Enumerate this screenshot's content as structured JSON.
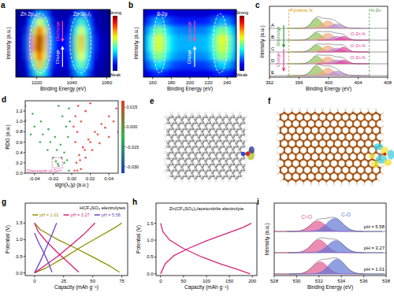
{
  "chart_data": [
    {
      "type": "heatmap",
      "panel_label": "a",
      "x_label": "Binding Energy (eV)",
      "y_label": "Intensity (a.u.)",
      "xlim": [
        1008,
        1062
      ],
      "xticks": [
        1020,
        1040,
        1060
      ],
      "tick_labels": "x",
      "x": [
        1009.5,
        1012.5,
        1015.5,
        1018.5,
        1021.5,
        1024.5,
        1027.5,
        1030.5,
        1033.5,
        1036.5,
        1039.5,
        1042.5,
        1045.5,
        1048.5,
        1051.5,
        1054.5,
        1057.5,
        1060.5
      ],
      "cells": [
        [
          0.02,
          0.03,
          0.05,
          0.15,
          0.3,
          0.25,
          0.1,
          0.05,
          0.04,
          0.04,
          0.06,
          0.15,
          0.25,
          0.18,
          0.07,
          0.04,
          0.03,
          0.02
        ],
        [
          0.03,
          0.05,
          0.12,
          0.35,
          0.6,
          0.45,
          0.18,
          0.08,
          0.06,
          0.06,
          0.1,
          0.3,
          0.45,
          0.3,
          0.12,
          0.05,
          0.03,
          0.02
        ],
        [
          0.04,
          0.07,
          0.2,
          0.55,
          0.85,
          0.6,
          0.25,
          0.12,
          0.09,
          0.09,
          0.15,
          0.42,
          0.6,
          0.4,
          0.16,
          0.07,
          0.04,
          0.03
        ],
        [
          0.05,
          0.08,
          0.25,
          0.7,
          1.0,
          0.7,
          0.3,
          0.15,
          0.12,
          0.12,
          0.2,
          0.5,
          0.7,
          0.45,
          0.2,
          0.1,
          0.06,
          0.04
        ],
        [
          0.05,
          0.08,
          0.25,
          0.72,
          0.98,
          0.68,
          0.3,
          0.15,
          0.12,
          0.12,
          0.2,
          0.5,
          0.68,
          0.45,
          0.2,
          0.1,
          0.06,
          0.04
        ],
        [
          0.04,
          0.07,
          0.22,
          0.6,
          0.88,
          0.6,
          0.25,
          0.12,
          0.1,
          0.1,
          0.16,
          0.45,
          0.62,
          0.4,
          0.17,
          0.08,
          0.05,
          0.03
        ],
        [
          0.03,
          0.06,
          0.16,
          0.45,
          0.7,
          0.5,
          0.2,
          0.1,
          0.08,
          0.08,
          0.13,
          0.36,
          0.5,
          0.33,
          0.13,
          0.06,
          0.04,
          0.03
        ],
        [
          0.02,
          0.04,
          0.1,
          0.3,
          0.48,
          0.35,
          0.14,
          0.07,
          0.05,
          0.05,
          0.09,
          0.25,
          0.35,
          0.22,
          0.09,
          0.04,
          0.03,
          0.02
        ]
      ],
      "colorbar": {
        "range": [
          0,
          1
        ],
        "labels": [
          "Strong",
          "Weak"
        ]
      },
      "highlights": [
        [
          1016,
          1028
        ],
        [
          1039,
          1051
        ]
      ],
      "peak_labels": [
        {
          "text": "Zn 2p₃/₂",
          "x": 1016
        },
        {
          "text": "Zn 2p₁/₂",
          "x": 1046
        }
      ],
      "annotations": [
        {
          "text": "Discharge",
          "x": 1032,
          "color": "#ff4f9a"
        },
        {
          "text": "Charge",
          "x": 1032,
          "color": "#ffffff"
        }
      ]
    },
    {
      "type": "heatmap",
      "panel_label": "b",
      "x_label": "Binding Energy (eV)",
      "y_label": "Intensity (a.u.)",
      "xlim": [
        150,
        250
      ],
      "xticks": [
        160,
        180,
        200,
        220,
        240
      ],
      "tick_labels": "x",
      "x": [
        152.5,
        157.5,
        162.5,
        167.5,
        172.5,
        177.5,
        182.5,
        187.5,
        192.5,
        197.5,
        202.5,
        207.5,
        212.5,
        217.5,
        222.5,
        227.5,
        232.5,
        237.5,
        242.5,
        247.5
      ],
      "cells": [
        [
          0.08,
          0.1,
          0.12,
          0.14,
          0.12,
          0.1,
          0.09,
          0.08,
          0.08,
          0.08,
          0.08,
          0.08,
          0.08,
          0.08,
          0.09,
          0.11,
          0.13,
          0.13,
          0.11,
          0.09
        ],
        [
          0.15,
          0.2,
          0.28,
          0.32,
          0.25,
          0.2,
          0.17,
          0.16,
          0.15,
          0.15,
          0.15,
          0.15,
          0.15,
          0.16,
          0.18,
          0.24,
          0.3,
          0.3,
          0.24,
          0.18
        ],
        [
          0.25,
          0.32,
          0.45,
          0.52,
          0.42,
          0.33,
          0.28,
          0.26,
          0.25,
          0.25,
          0.25,
          0.25,
          0.25,
          0.26,
          0.3,
          0.4,
          0.5,
          0.5,
          0.4,
          0.3
        ],
        [
          0.3,
          0.38,
          0.55,
          0.62,
          0.5,
          0.38,
          0.33,
          0.3,
          0.3,
          0.3,
          0.3,
          0.3,
          0.3,
          0.31,
          0.35,
          0.48,
          0.6,
          0.6,
          0.48,
          0.35
        ],
        [
          0.3,
          0.38,
          0.55,
          0.6,
          0.5,
          0.38,
          0.33,
          0.3,
          0.3,
          0.3,
          0.3,
          0.3,
          0.3,
          0.31,
          0.35,
          0.48,
          0.58,
          0.58,
          0.46,
          0.35
        ],
        [
          0.26,
          0.33,
          0.47,
          0.53,
          0.43,
          0.34,
          0.29,
          0.27,
          0.26,
          0.26,
          0.26,
          0.26,
          0.26,
          0.27,
          0.31,
          0.42,
          0.52,
          0.52,
          0.41,
          0.31
        ],
        [
          0.18,
          0.23,
          0.32,
          0.36,
          0.3,
          0.24,
          0.2,
          0.19,
          0.18,
          0.18,
          0.18,
          0.18,
          0.18,
          0.19,
          0.21,
          0.28,
          0.34,
          0.34,
          0.28,
          0.22
        ],
        [
          0.1,
          0.12,
          0.16,
          0.18,
          0.15,
          0.12,
          0.11,
          0.1,
          0.1,
          0.1,
          0.1,
          0.1,
          0.1,
          0.1,
          0.11,
          0.14,
          0.17,
          0.17,
          0.14,
          0.11
        ]
      ],
      "colorbar": {
        "range": [
          0,
          1
        ],
        "labels": [
          "Strong",
          "Weak"
        ]
      },
      "highlights": [
        [
          161,
          174
        ],
        [
          225,
          240
        ]
      ],
      "peak_labels": [
        {
          "text": "S 2p",
          "x": 170
        }
      ],
      "annotations": [
        {
          "text": "Discharge",
          "x": 200,
          "color": "#ff4f9a"
        },
        {
          "text": "Charge",
          "x": 200,
          "color": "#ffffff"
        }
      ]
    },
    {
      "type": "stacked_spectra",
      "panel_label": "c",
      "x_label": "Binding Energy (eV)",
      "y_label": "Intensity (a.u.)",
      "xlim": [
        392,
        408
      ],
      "xticks": [
        392,
        396,
        400,
        404,
        408
      ],
      "tick_labels": "x",
      "components": [
        {
          "color": "#8dbf52"
        },
        {
          "color": "#f3a77b"
        },
        {
          "color": "#b18ad6"
        },
        {
          "color": "#e0409a"
        }
      ],
      "spectra": [
        {
          "name": "A",
          "centers": [
            398.4,
            399.9,
            401.1,
            null
          ],
          "fwhm": [
            1.6,
            1.8,
            1.8,
            null
          ],
          "heights": [
            0.8,
            0.6,
            0.35,
            null
          ]
        },
        {
          "name": "B",
          "centers": [
            398.4,
            399.9,
            401.1,
            402.0
          ],
          "fwhm": [
            1.6,
            1.8,
            1.8,
            1.4
          ],
          "heights": [
            0.6,
            0.55,
            0.3,
            0.3
          ],
          "label": "-O-Zn-N"
        },
        {
          "name": "C",
          "centers": [
            398.4,
            399.9,
            401.1,
            402.0
          ],
          "fwhm": [
            1.6,
            1.8,
            1.8,
            1.4
          ],
          "heights": [
            0.55,
            0.5,
            0.3,
            0.38
          ],
          "label": "-O-Zn-N"
        },
        {
          "name": "D",
          "centers": [
            398.4,
            399.9,
            401.1,
            402.0
          ],
          "fwhm": [
            1.6,
            1.8,
            1.8,
            1.4
          ],
          "heights": [
            0.6,
            0.55,
            0.3,
            0.3
          ],
          "label": "-O-Zn-N"
        },
        {
          "name": "E",
          "centers": [
            398.4,
            399.9,
            401.1,
            null
          ],
          "fwhm": [
            1.6,
            1.8,
            1.8,
            null
          ],
          "heights": [
            0.78,
            0.6,
            0.35,
            null
          ]
        }
      ],
      "annotations": [
        {
          "text": "Pyridinic N",
          "x": 394.6,
          "color": "#e08a00"
        },
        {
          "text": "N-Zn",
          "x": 405.5,
          "color": "#3c9a3c"
        }
      ],
      "process_labels": [
        {
          "text": "Discharge",
          "color": "#3c9a3c"
        },
        {
          "text": "Charge",
          "color": "#e0409a"
        }
      ]
    },
    {
      "type": "scatter",
      "panel_label": "d",
      "x_label": "sign(λ₂)ρ (a.u.)",
      "y_label": "RDG (a.u.)",
      "xlim": [
        -0.05,
        0.05
      ],
      "ylim": [
        0,
        1.4
      ],
      "xticks": [
        -0.04,
        -0.02,
        {
          "value": 0,
          "label": "0.00"
        },
        0.02,
        0.04
      ],
      "yticks": [
        {
          "value": 0,
          "label": "0.0"
        },
        0.2,
        0.4,
        0.6,
        0.8,
        {
          "value": 1,
          "label": "1.0"
        },
        1.2
      ],
      "series": [
        {
          "color": "#2e9e3e",
          "x": [
            -0.003,
            -0.005,
            -0.008,
            -0.012,
            -0.018,
            -0.025,
            -0.033,
            -0.042,
            -0.05,
            -0.008,
            -0.011,
            -0.016,
            -0.023,
            -0.031,
            -0.04,
            -0.05,
            -0.014,
            -0.015,
            -0.017,
            -0.02,
            -0.026,
            -0.034,
            -0.044,
            -0.004,
            -0.006,
            -0.01,
            -0.014,
            -0.002,
            -0.003
          ],
          "values": [
            0.05,
            0.25,
            0.4,
            0.55,
            0.7,
            0.85,
            1.0,
            1.15,
            1.3,
            0.2,
            0.3,
            0.45,
            0.6,
            0.75,
            0.9,
            1.02,
            0.14,
            0.18,
            0.23,
            0.3,
            0.45,
            0.6,
            0.75,
            0.7,
            0.9,
            1.1,
            1.3,
            1.0,
            1.25
          ]
        },
        {
          "color": "#e8352a",
          "x": [
            0.003,
            0.005,
            0.008,
            0.012,
            0.018,
            0.025,
            0.032,
            0.04,
            0.048,
            0.006,
            0.009,
            0.014,
            0.02,
            0.028,
            0.036,
            0.045,
            0.01,
            0.015,
            0.022,
            0.03,
            0.04,
            0.05,
            0.004,
            0.006,
            0.01,
            0.015,
            0.02,
            0.002,
            0.004,
            0.007
          ],
          "values": [
            0.05,
            0.2,
            0.35,
            0.5,
            0.65,
            0.8,
            0.95,
            1.1,
            1.25,
            0.05,
            0.25,
            0.45,
            0.6,
            0.75,
            0.88,
            1.0,
            0.08,
            0.3,
            0.45,
            0.58,
            0.7,
            0.8,
            0.6,
            0.8,
            1.0,
            1.2,
            1.35,
            0.9,
            1.1,
            1.3
          ]
        }
      ],
      "colorbar": {
        "range": [
          -0.035,
          0.02
        ],
        "ticks": [
          0.015,
          {
            "value": 0,
            "label": "0.000"
          },
          -0.015,
          {
            "value": -0.03,
            "label": "-0.030"
          }
        ]
      },
      "annotation": {
        "text": "Chemisorb of Zn²⁺",
        "box_x": [
          -0.021,
          -0.01
        ],
        "box_y": [
          0.1,
          0.3
        ]
      }
    },
    {
      "type": "diagram",
      "panel_label": "e"
    },
    {
      "type": "diagram",
      "panel_label": "f"
    },
    {
      "type": "line",
      "panel_label": "g",
      "x_label": "Capacity (mAh g⁻¹)",
      "y_label": "Potential (V)",
      "xlim": [
        -8,
        80
      ],
      "ylim": [
        -0.08,
        2.1
      ],
      "xticks": [
        0,
        25,
        50,
        75
      ],
      "yticks": [
        {
          "value": 0,
          "label": "0.0"
        },
        0.5,
        {
          "value": 1,
          "label": "1.0"
        },
        1.5
      ],
      "legend": "upper right",
      "legend_title": "HCF₃SO₃ electrolytes",
      "series": [
        {
          "name": "pH = 1.01",
          "color": "#8f8f00",
          "x": [
            0,
            10,
            25,
            40,
            55,
            70,
            75,
            null,
            0,
            5,
            20,
            35,
            50,
            65,
            73
          ],
          "values": [
            0,
            0.15,
            0.45,
            0.78,
            1.08,
            1.38,
            1.5,
            null,
            1.5,
            1.3,
            1.0,
            0.75,
            0.48,
            0.2,
            0.02
          ]
        },
        {
          "name": "pH = 3.27",
          "color": "#d81b7a",
          "x": [
            0,
            8,
            20,
            32,
            42,
            52,
            null,
            0,
            3,
            10,
            20,
            30,
            38
          ],
          "values": [
            0,
            0.2,
            0.5,
            0.85,
            1.15,
            1.5,
            null,
            1.5,
            1.25,
            0.95,
            0.6,
            0.28,
            0.02
          ]
        },
        {
          "name": "pH = 5.58",
          "color": "#6b3fd4",
          "x": [
            0,
            5,
            10,
            15,
            19,
            null,
            0,
            3,
            8,
            12,
            15
          ],
          "values": [
            0,
            0.35,
            0.75,
            1.15,
            1.5,
            null,
            1.2,
            0.95,
            0.6,
            0.3,
            0.02
          ]
        }
      ]
    },
    {
      "type": "line",
      "panel_label": "h",
      "title": "Zn(CF₃SO₃)₂/acetonitrile electrolyte",
      "x_label": "Capacity (mAh g⁻¹)",
      "y_label": "Potential (V)",
      "xlim": [
        -10,
        210
      ],
      "ylim": [
        -0.05,
        2.1
      ],
      "xticks": [
        0,
        50,
        100,
        150,
        200
      ],
      "yticks": [
        {
          "value": 0,
          "label": "0.0"
        },
        0.5,
        {
          "value": 1,
          "label": "1.0"
        },
        1.5
      ],
      "series": [
        {
          "color": "#d6227a",
          "x": [
            0,
            10,
            30,
            60,
            100,
            140,
            180,
            198,
            null,
            0,
            5,
            20,
            50,
            90,
            130,
            170,
            195
          ],
          "values": [
            0,
            0.3,
            0.55,
            0.75,
            0.98,
            1.18,
            1.38,
            1.5,
            null,
            1.5,
            1.25,
            1.0,
            0.75,
            0.5,
            0.3,
            0.12,
            0
          ]
        }
      ]
    },
    {
      "type": "stacked_spectra",
      "panel_label": "i",
      "x_label": "Binding Energy (eV)",
      "y_label": "Intensity (a.u.)",
      "xlim": [
        528,
        538
      ],
      "xticks": [
        528,
        530,
        532,
        534,
        536,
        538
      ],
      "tick_labels": "x",
      "components": [
        {
          "label": "C=O",
          "color": "#e2558f"
        },
        {
          "label": "C-O",
          "color": "#5d73d4"
        }
      ],
      "spectra": [
        {
          "name": "pH = 5.58",
          "centers": [
            531.9,
            533.4
          ],
          "fwhm": [
            1.6,
            1.7
          ],
          "heights": [
            0.6,
            0.75
          ]
        },
        {
          "name": "pH = 3.27",
          "centers": [
            532.0,
            533.5
          ],
          "fwhm": [
            1.6,
            1.7
          ],
          "heights": [
            0.75,
            0.7
          ]
        },
        {
          "name": "pH = 1.01",
          "centers": [
            532.1,
            533.6
          ],
          "fwhm": [
            1.6,
            1.7
          ],
          "heights": [
            0.7,
            0.85
          ]
        }
      ]
    }
  ]
}
